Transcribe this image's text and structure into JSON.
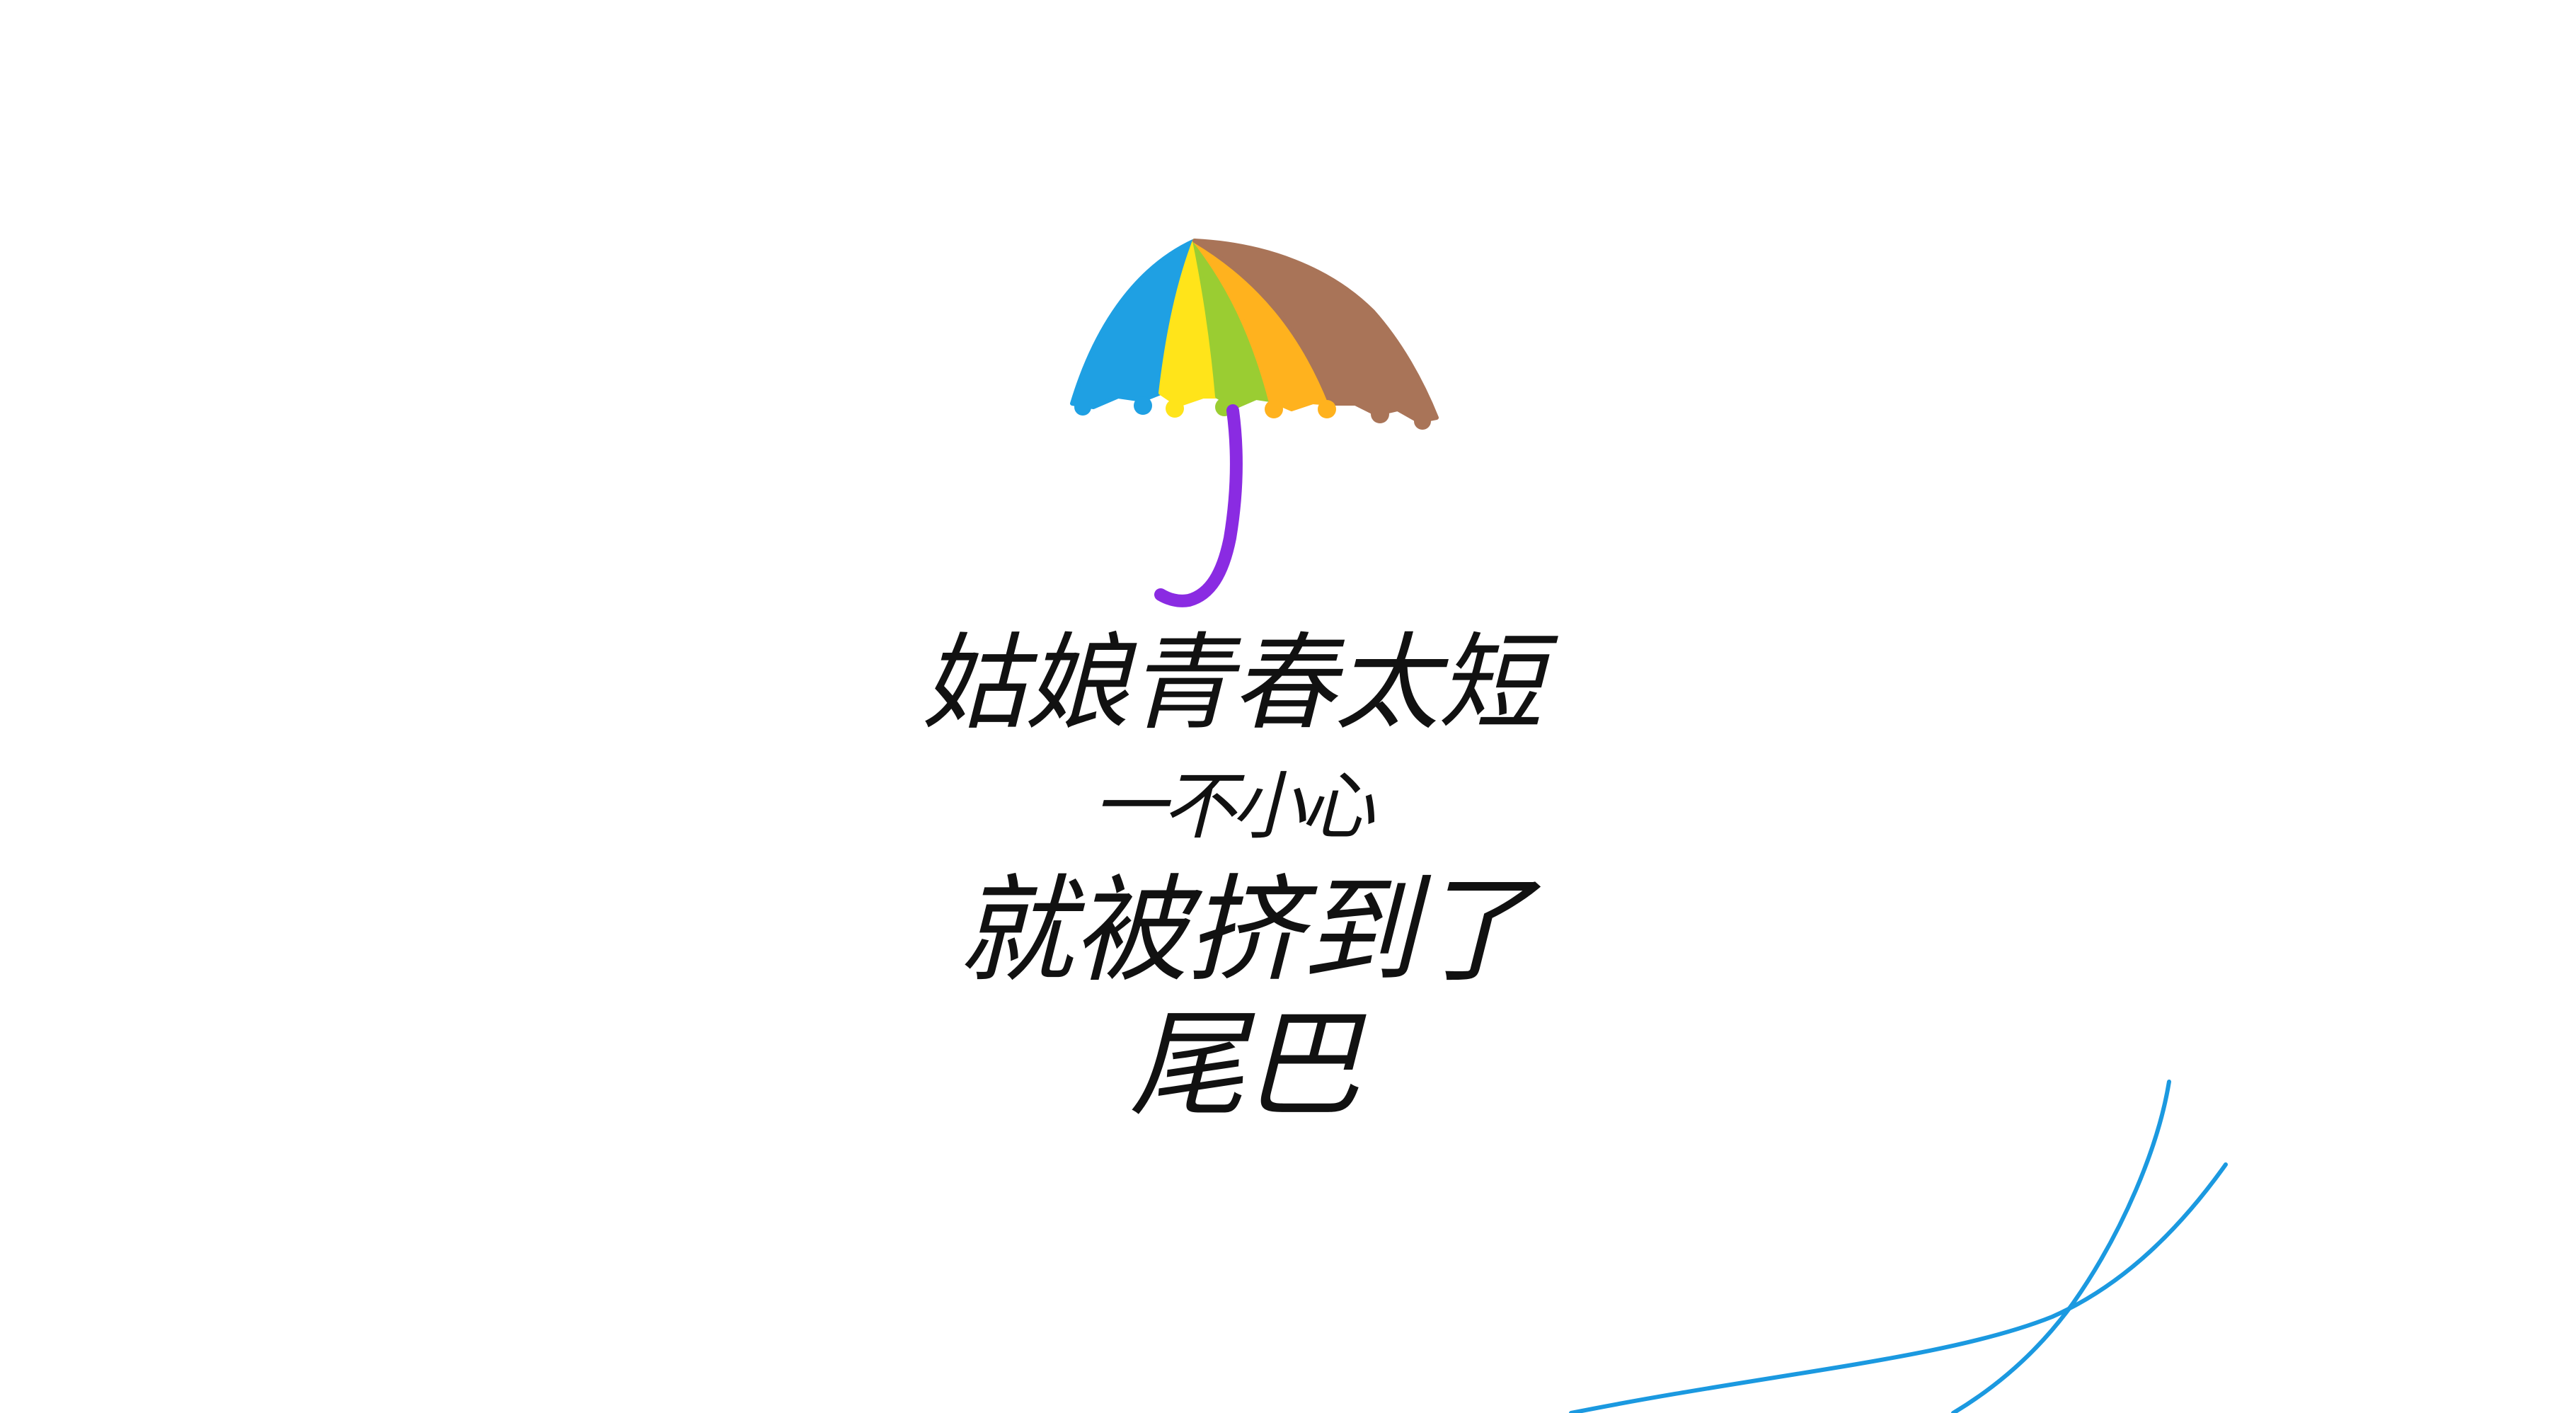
{
  "lines": {
    "line1": "姑娘青春太短",
    "line2": "一不小心",
    "line3": "就被挤到了尾巴"
  },
  "colors": {
    "background": "#ffffff",
    "text": "#111111",
    "umbrella_blue": "#1fa0e3",
    "umbrella_yellow": "#ffe41a",
    "umbrella_green": "#9acd32",
    "umbrella_orange": "#ffb21e",
    "umbrella_brown": "#a97458",
    "handle_purple": "#8a2be2",
    "curve_blue": "#1b99e0"
  },
  "icons": {
    "umbrella": "umbrella-icon",
    "curves": "blue-curve-lines"
  }
}
